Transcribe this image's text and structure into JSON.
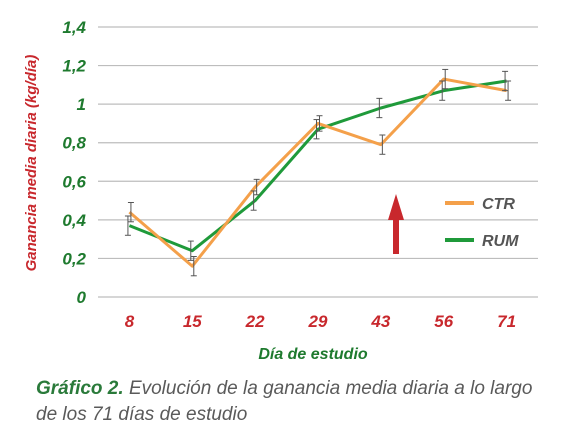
{
  "chart_data": {
    "type": "line",
    "categories": [
      "8",
      "15",
      "22",
      "29",
      "43",
      "56",
      "71"
    ],
    "series": [
      {
        "name": "CTR",
        "color": "#f4a04a",
        "values": [
          0.44,
          0.16,
          0.57,
          0.9,
          0.79,
          1.13,
          1.07
        ],
        "error": [
          0.05,
          0.05,
          0.04,
          0.04,
          0.05,
          0.05,
          0.05
        ]
      },
      {
        "name": "RUM",
        "color": "#1f9a3a",
        "values": [
          0.37,
          0.24,
          0.5,
          0.87,
          0.98,
          1.07,
          1.12
        ],
        "error": [
          0.05,
          0.05,
          0.05,
          0.05,
          0.05,
          0.05,
          0.05
        ]
      }
    ],
    "ylim": [
      0,
      1.4
    ],
    "yticks": [
      "0",
      "0,2",
      "0,4",
      "0,6",
      "0,8",
      "1",
      "1,2",
      "1,4"
    ],
    "xlabel": "Día de estudio",
    "ylabel": "Ganancia media diaria (kg/día)",
    "grid": true,
    "legend_position": "right",
    "annotation": "red-up-arrow",
    "colors": {
      "ylabel": "#c8282d",
      "xlabel": "#1e7a2e",
      "yticks": "#1e7a2e",
      "xticks": "#c8282d",
      "grid": "#bdbdbd",
      "arrow": "#c8282d"
    }
  },
  "caption": {
    "label": "Gráfico 2.",
    "text": "Evolución de la ganancia media diaria a lo largo de los 71 días de estudio"
  }
}
